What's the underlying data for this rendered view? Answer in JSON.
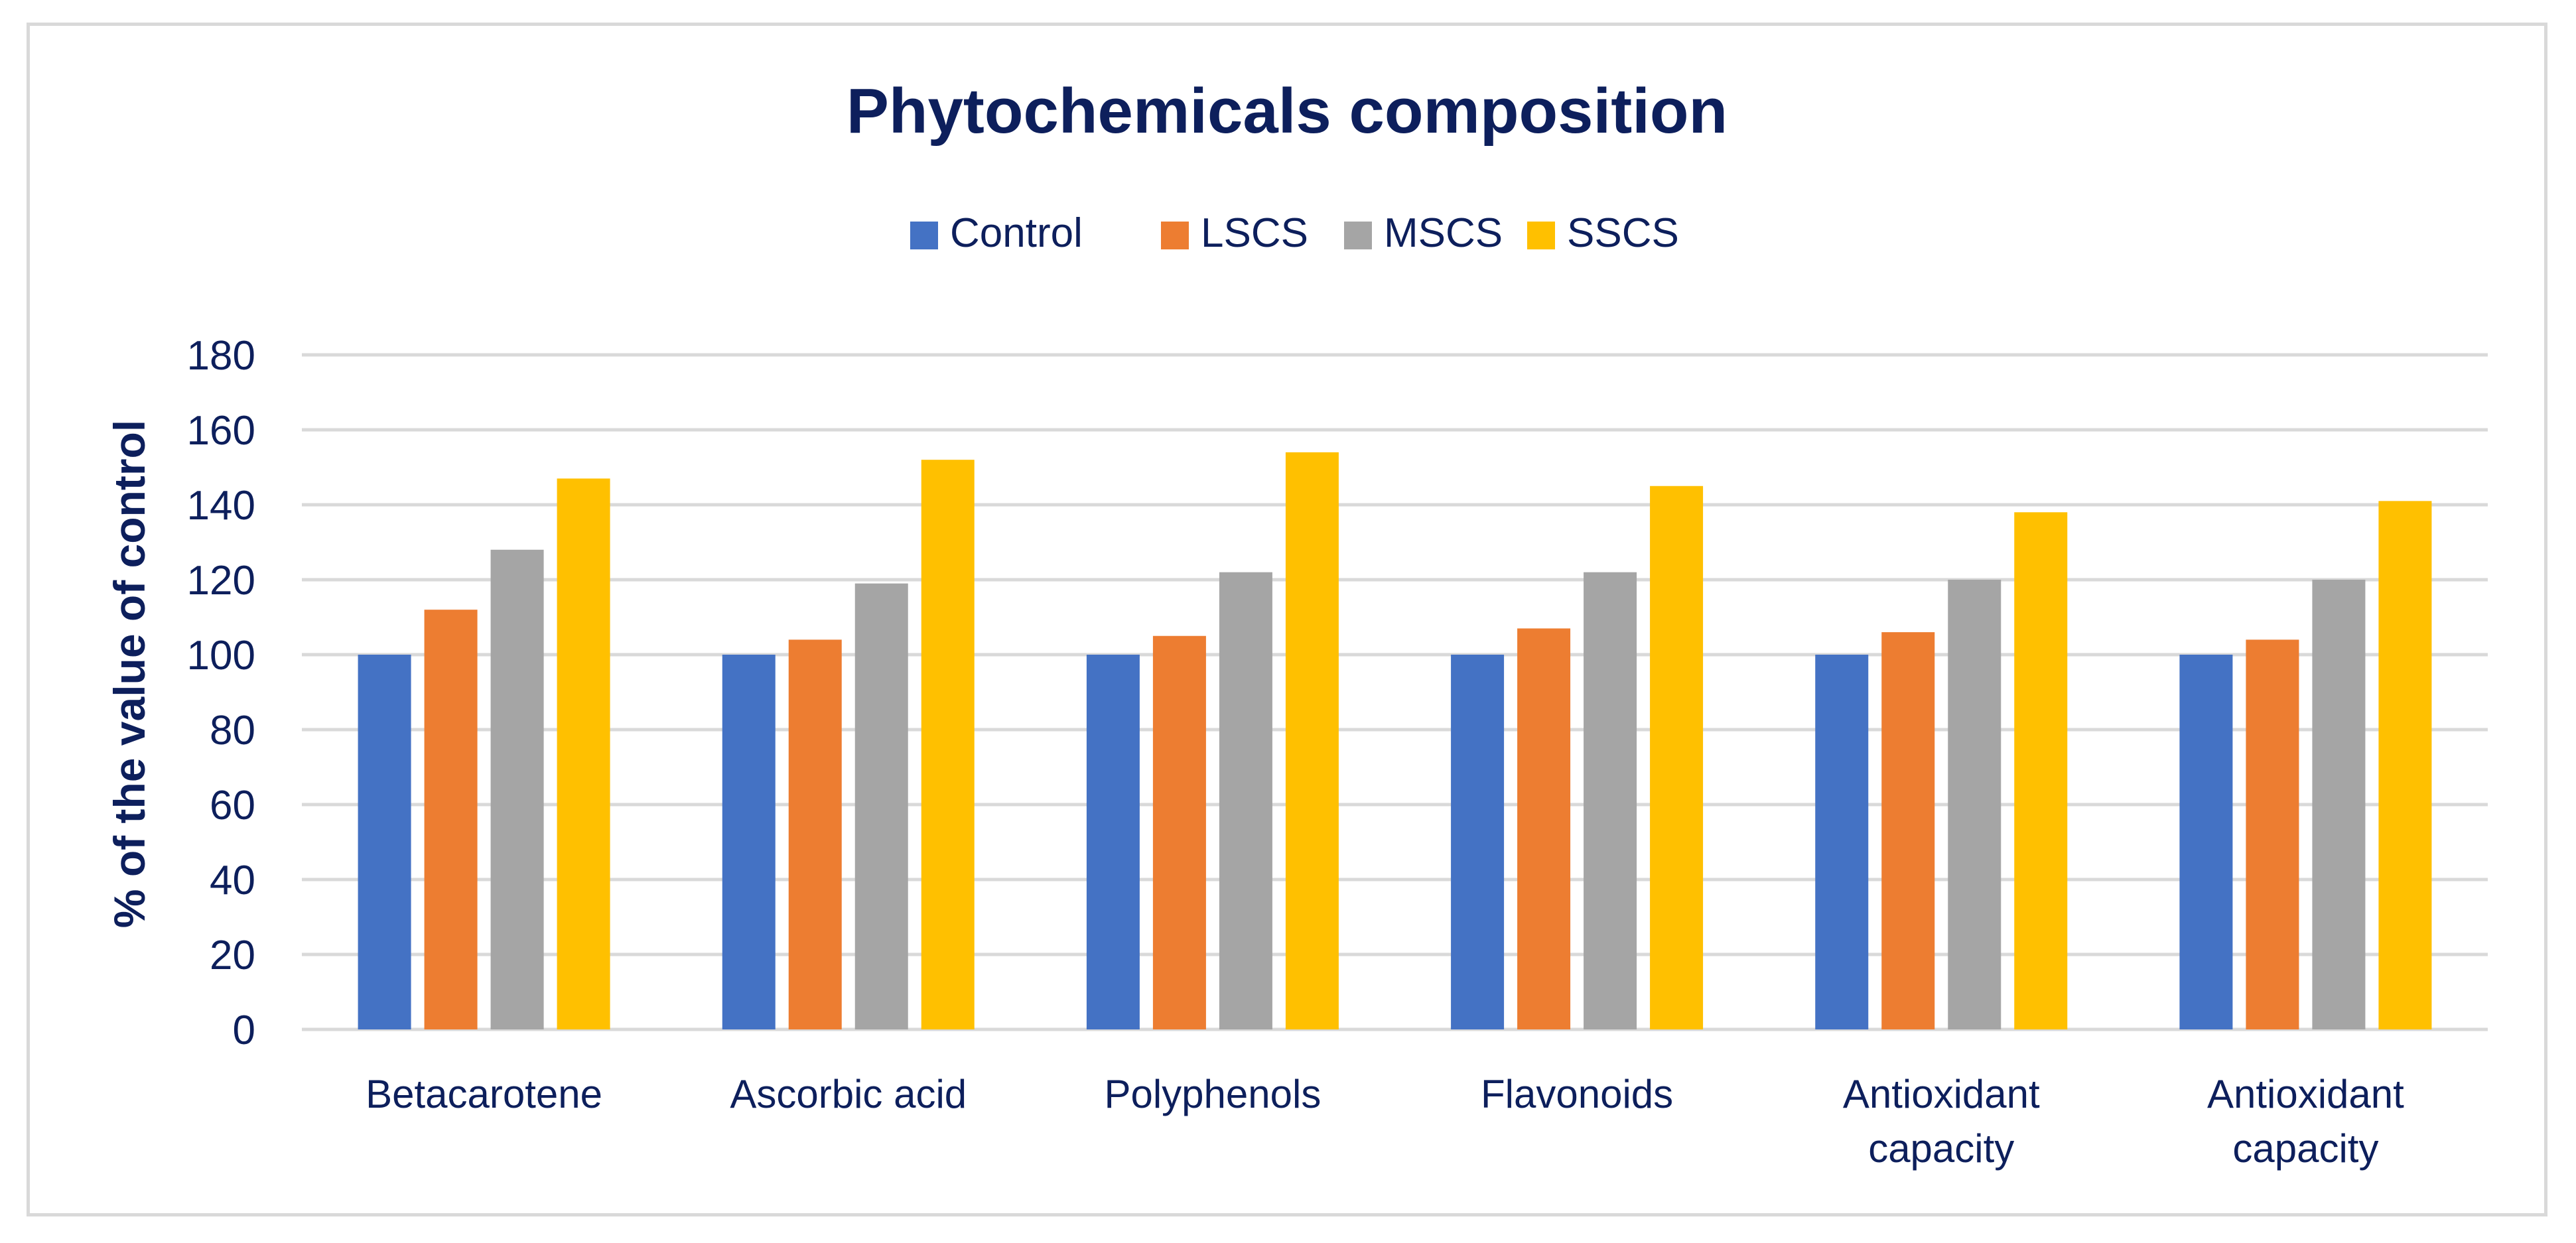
{
  "chart_data": {
    "type": "bar",
    "title": "Phytochemicals composition",
    "xlabel": "",
    "ylabel": "% of the value of control",
    "ylim": [
      0,
      180
    ],
    "ytick_step": 20,
    "grid": true,
    "legend_position": "top-center",
    "categories": [
      [
        "Betacarotene"
      ],
      [
        "Ascorbic acid"
      ],
      [
        "Polyphenols"
      ],
      [
        "Flavonoids"
      ],
      [
        "Antioxidant",
        "capacity"
      ],
      [
        "Antioxidant",
        "capacity"
      ]
    ],
    "series": [
      {
        "name": "Control",
        "color": "#4472c4",
        "values": [
          100,
          100,
          100,
          100,
          100,
          100
        ]
      },
      {
        "name": "LSCS",
        "color": "#ed7d31",
        "values": [
          112,
          104,
          105,
          107,
          106,
          104
        ]
      },
      {
        "name": "MSCS",
        "color": "#a5a5a5",
        "values": [
          128,
          119,
          122,
          122,
          120,
          120
        ]
      },
      {
        "name": "SSCS",
        "color": "#ffc000",
        "values": [
          147,
          152,
          154,
          145,
          138,
          141
        ]
      }
    ],
    "colors": {
      "text": "#0d1f5c",
      "axis": "#0d1f5c",
      "grid": "#d9d9d9"
    }
  }
}
